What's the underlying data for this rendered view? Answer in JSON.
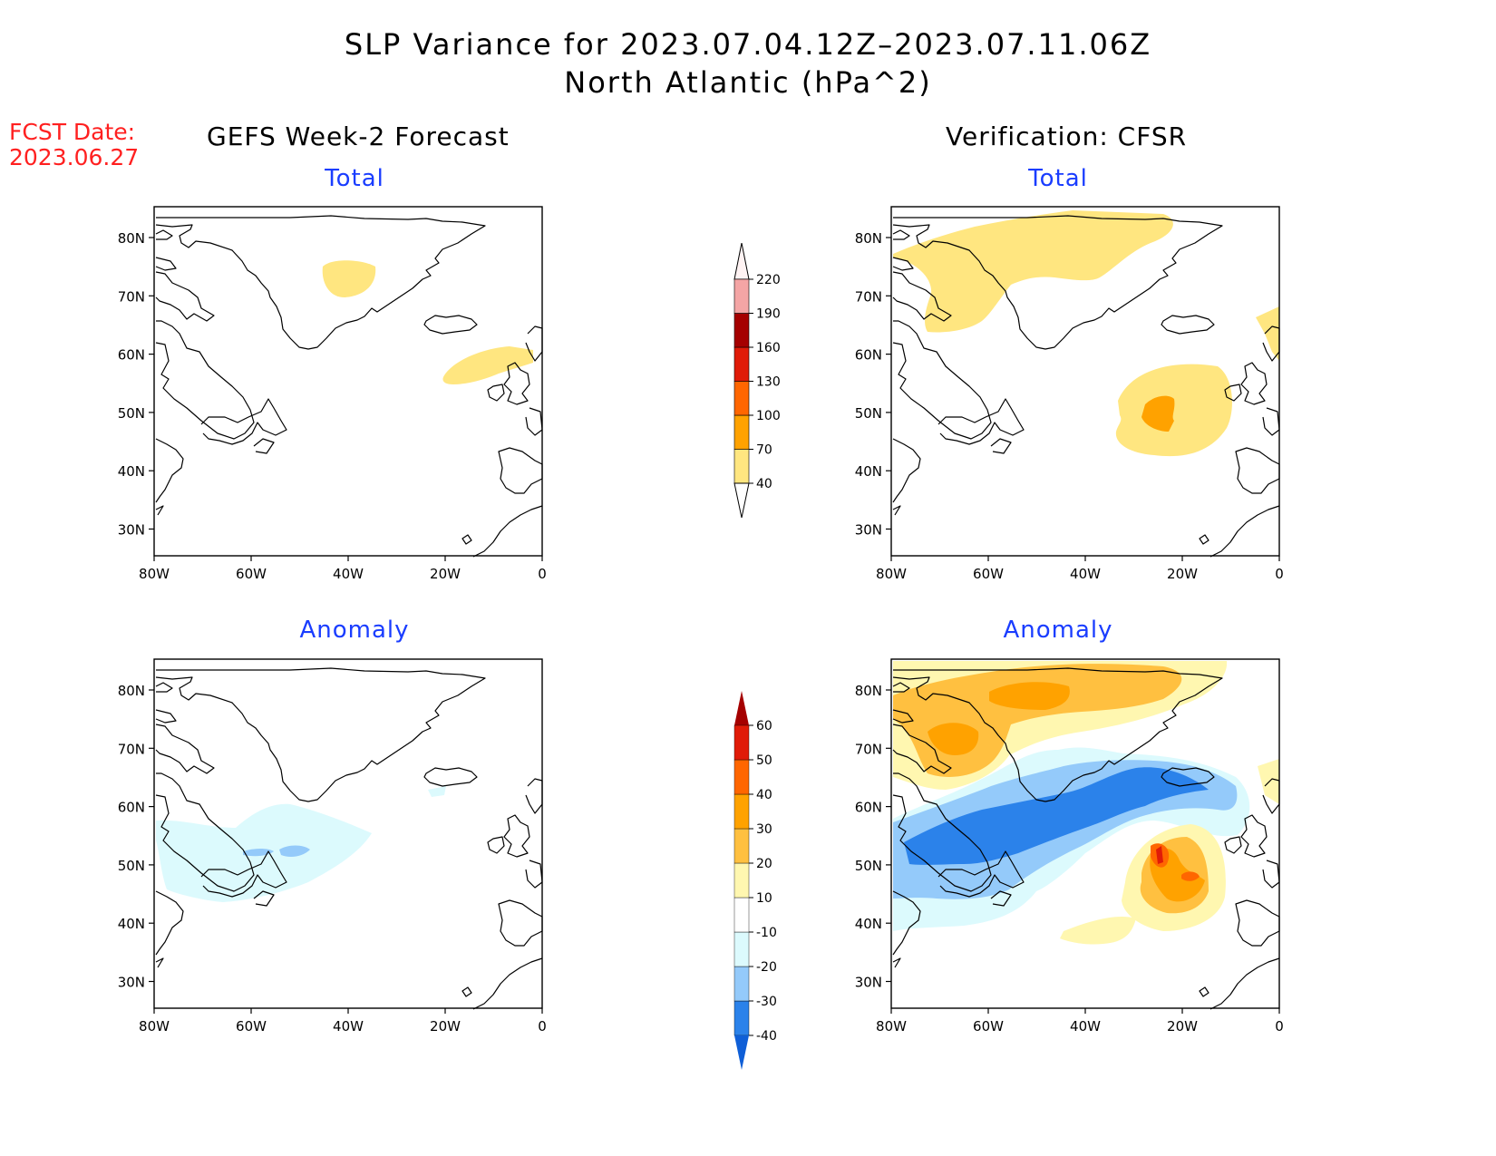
{
  "header": {
    "title_line1": "SLP Variance for 2023.07.04.12Z–2023.07.11.06Z",
    "title_line2": "North Atlantic (hPa^2)"
  },
  "fcst": {
    "label": "FCST Date:",
    "date": "2023.06.27"
  },
  "columns": {
    "left_title": "GEFS Week-2 Forecast",
    "right_title": "Verification: CFSR"
  },
  "panels": {
    "fcst_total": {
      "subtitle": "Total"
    },
    "fcst_anomaly": {
      "subtitle": "Anomaly"
    },
    "verif_total": {
      "subtitle": "Total"
    },
    "verif_anomaly": {
      "subtitle": "Anomaly"
    }
  },
  "axes": {
    "lat_labels": [
      "80N",
      "70N",
      "60N",
      "50N",
      "40N",
      "30N"
    ],
    "lon_labels": [
      "80W",
      "60W",
      "40W",
      "20W",
      "0"
    ]
  },
  "colorbars": {
    "total": {
      "labels": [
        "40",
        "70",
        "100",
        "130",
        "160",
        "190",
        "220"
      ],
      "colors": [
        "#ffe680",
        "#ffa200",
        "#ff6600",
        "#e01b08",
        "#a50000",
        "#f4a5a5",
        "#fde6e6"
      ]
    },
    "anomaly": {
      "labels": [
        "-40",
        "-30",
        "-20",
        "-10",
        "10",
        "20",
        "30",
        "40",
        "50",
        "60"
      ],
      "colors": [
        "#0f5fd7",
        "#2b82ea",
        "#94cafa",
        "#dcfafd",
        "#ffffff",
        "#fff7b0",
        "#ffc040",
        "#ffa200",
        "#ff6600",
        "#e01b08",
        "#a50000"
      ]
    }
  },
  "map": {
    "land_outline_color": "#000000",
    "background": "#ffffff"
  }
}
